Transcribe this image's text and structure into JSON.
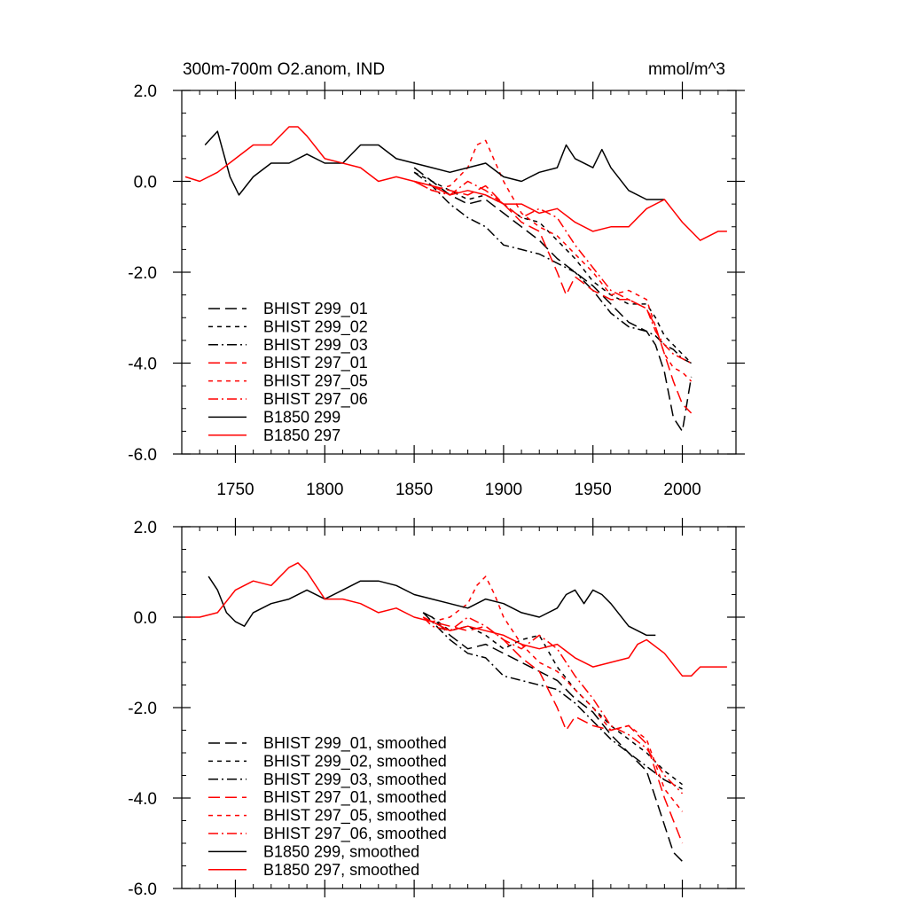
{
  "figure": {
    "title_left": "300m-700m O2.anom, IND",
    "title_right": "mmol/m^3"
  },
  "chart_data": [
    {
      "type": "line",
      "panel": "top",
      "xlim": [
        1720,
        2030
      ],
      "ylim": [
        -6.0,
        2.0
      ],
      "x_ticks": [
        1750,
        1800,
        1850,
        1900,
        1950,
        2000
      ],
      "x_tick_labels": [
        "1750",
        "1800",
        "1850",
        "1900",
        "1950",
        "2000"
      ],
      "y_ticks": [
        2.0,
        0.0,
        -2.0,
        -4.0,
        -6.0
      ],
      "y_tick_labels": [
        "2.0",
        "0.0",
        "-2.0",
        "-4.0",
        "-6.0"
      ],
      "grid": false,
      "legend_position": "bottom-left",
      "series": [
        {
          "name": "BHIST 299_01",
          "color": "#000000",
          "dash": "long-dash",
          "x": [
            1850,
            1860,
            1870,
            1880,
            1890,
            1900,
            1910,
            1920,
            1930,
            1940,
            1950,
            1960,
            1970,
            1980,
            1985,
            1990,
            1995,
            2000,
            2005
          ],
          "y": [
            0.3,
            0.0,
            -0.3,
            -0.5,
            -0.4,
            -0.7,
            -1.0,
            -1.3,
            -1.7,
            -2.0,
            -2.3,
            -2.7,
            -3.1,
            -3.3,
            -3.6,
            -4.2,
            -5.2,
            -5.5,
            -4.3
          ]
        },
        {
          "name": "BHIST 299_02",
          "color": "#000000",
          "dash": "short-dash",
          "x": [
            1850,
            1860,
            1870,
            1880,
            1890,
            1900,
            1910,
            1920,
            1930,
            1940,
            1950,
            1960,
            1970,
            1980,
            1985,
            1990,
            1995,
            2000,
            2005
          ],
          "y": [
            0.2,
            0.0,
            -0.2,
            -0.4,
            -0.3,
            -0.5,
            -0.8,
            -0.9,
            -1.3,
            -1.7,
            -2.2,
            -2.5,
            -2.7,
            -2.7,
            -3.0,
            -3.4,
            -3.6,
            -3.8,
            -4.0
          ]
        },
        {
          "name": "BHIST 299_03",
          "color": "#000000",
          "dash": "dash-dot",
          "x": [
            1850,
            1860,
            1870,
            1880,
            1890,
            1900,
            1910,
            1920,
            1930,
            1940,
            1950,
            1960,
            1970,
            1980,
            1985,
            1990,
            1995,
            2000,
            2005
          ],
          "y": [
            0.2,
            -0.1,
            -0.5,
            -0.8,
            -1.0,
            -1.4,
            -1.5,
            -1.6,
            -1.8,
            -2.0,
            -2.4,
            -2.9,
            -3.2,
            -3.3,
            -3.4,
            -3.6,
            -3.7,
            -3.9,
            -4.0
          ]
        },
        {
          "name": "BHIST 297_01",
          "color": "#ff0000",
          "dash": "long-dash",
          "x": [
            1850,
            1860,
            1870,
            1880,
            1890,
            1900,
            1910,
            1920,
            1930,
            1935,
            1940,
            1950,
            1960,
            1970,
            1980,
            1985,
            1990,
            1995,
            2000,
            2005
          ],
          "y": [
            0.0,
            -0.1,
            -0.2,
            -0.3,
            -0.1,
            -0.5,
            -0.9,
            -1.1,
            -2.0,
            -2.5,
            -2.1,
            -2.4,
            -2.6,
            -2.6,
            -2.8,
            -3.2,
            -3.8,
            -4.4,
            -4.9,
            -5.1
          ]
        },
        {
          "name": "BHIST 297_05",
          "color": "#ff0000",
          "dash": "short-dash",
          "x": [
            1850,
            1860,
            1870,
            1880,
            1885,
            1890,
            1900,
            1910,
            1920,
            1930,
            1940,
            1950,
            1960,
            1970,
            1980,
            1985,
            1990,
            1995,
            2000,
            2005
          ],
          "y": [
            0.0,
            -0.2,
            -0.1,
            0.3,
            0.8,
            0.9,
            0.0,
            -0.7,
            -1.0,
            -1.2,
            -1.6,
            -2.0,
            -2.5,
            -2.4,
            -2.6,
            -3.2,
            -3.8,
            -4.1,
            -4.2,
            -4.4
          ]
        },
        {
          "name": "BHIST 297_06",
          "color": "#ff0000",
          "dash": "dash-dot",
          "x": [
            1850,
            1860,
            1870,
            1880,
            1890,
            1900,
            1910,
            1920,
            1930,
            1940,
            1950,
            1960,
            1970,
            1980,
            1985,
            1990,
            1995,
            2000,
            2005
          ],
          "y": [
            0.0,
            -0.2,
            -0.3,
            0.0,
            -0.2,
            -0.5,
            -0.8,
            -0.6,
            -0.8,
            -1.4,
            -1.9,
            -2.4,
            -2.6,
            -2.8,
            -3.3,
            -3.6,
            -3.8,
            -3.9,
            -4.0
          ]
        },
        {
          "name": "B1850 299",
          "color": "#000000",
          "dash": "solid",
          "x": [
            1733,
            1740,
            1747,
            1752,
            1760,
            1770,
            1780,
            1790,
            1800,
            1810,
            1820,
            1830,
            1840,
            1850,
            1860,
            1870,
            1880,
            1890,
            1900,
            1910,
            1920,
            1930,
            1935,
            1940,
            1950,
            1955,
            1960,
            1970,
            1980,
            1985,
            1990
          ],
          "y": [
            0.8,
            1.1,
            0.1,
            -0.3,
            0.1,
            0.4,
            0.4,
            0.6,
            0.4,
            0.4,
            0.8,
            0.8,
            0.5,
            0.4,
            0.3,
            0.2,
            0.3,
            0.4,
            0.1,
            0.0,
            0.2,
            0.3,
            0.8,
            0.5,
            0.3,
            0.7,
            0.3,
            -0.2,
            -0.4,
            -0.4,
            -0.4
          ]
        },
        {
          "name": "B1850 297",
          "color": "#ff0000",
          "dash": "solid",
          "x": [
            1722,
            1730,
            1740,
            1750,
            1760,
            1770,
            1780,
            1785,
            1790,
            1800,
            1810,
            1820,
            1830,
            1840,
            1850,
            1860,
            1870,
            1880,
            1890,
            1900,
            1910,
            1920,
            1930,
            1940,
            1950,
            1960,
            1970,
            1980,
            1990,
            2000,
            2010,
            2020,
            2025
          ],
          "y": [
            0.1,
            0.0,
            0.2,
            0.5,
            0.8,
            0.8,
            1.2,
            1.2,
            1.0,
            0.5,
            0.4,
            0.3,
            0.0,
            0.1,
            0.0,
            -0.1,
            -0.3,
            -0.2,
            -0.3,
            -0.5,
            -0.5,
            -0.7,
            -0.6,
            -0.9,
            -1.1,
            -1.0,
            -1.0,
            -0.6,
            -0.4,
            -0.9,
            -1.3,
            -1.1,
            -1.1
          ]
        }
      ]
    },
    {
      "type": "line",
      "panel": "bottom",
      "xlim": [
        1720,
        2030
      ],
      "ylim": [
        -6.0,
        2.0
      ],
      "x_ticks": [
        1750,
        1800,
        1850,
        1900,
        1950,
        2000
      ],
      "x_tick_labels": [
        "",
        "",
        "",
        "",
        "",
        ""
      ],
      "y_ticks": [
        2.0,
        0.0,
        -2.0,
        -4.0,
        -6.0
      ],
      "y_tick_labels": [
        "2.0",
        "0.0",
        "-2.0",
        "-4.0",
        "-6.0"
      ],
      "grid": false,
      "legend_position": "bottom-left",
      "series": [
        {
          "name": "BHIST 299_01, smoothed",
          "color": "#000000",
          "dash": "long-dash",
          "x": [
            1855,
            1860,
            1870,
            1880,
            1890,
            1900,
            1910,
            1920,
            1930,
            1940,
            1950,
            1960,
            1970,
            1980,
            1990,
            1995,
            2000
          ],
          "y": [
            0.1,
            0.0,
            -0.4,
            -0.7,
            -0.6,
            -0.8,
            -1.0,
            -1.2,
            -1.4,
            -1.8,
            -2.1,
            -2.6,
            -3.0,
            -3.4,
            -4.6,
            -5.2,
            -5.4
          ]
        },
        {
          "name": "BHIST 299_02, smoothed",
          "color": "#000000",
          "dash": "short-dash",
          "x": [
            1855,
            1860,
            1870,
            1880,
            1890,
            1900,
            1910,
            1920,
            1930,
            1940,
            1950,
            1960,
            1970,
            1980,
            1990,
            2000
          ],
          "y": [
            0.1,
            0.0,
            -0.3,
            -0.2,
            -0.4,
            -0.7,
            -0.5,
            -0.4,
            -1.1,
            -1.6,
            -2.0,
            -2.4,
            -2.7,
            -3.0,
            -3.4,
            -3.7
          ]
        },
        {
          "name": "BHIST 299_03, smoothed",
          "color": "#000000",
          "dash": "dash-dot",
          "x": [
            1855,
            1860,
            1870,
            1880,
            1890,
            1900,
            1910,
            1920,
            1930,
            1940,
            1950,
            1960,
            1970,
            1980,
            1990,
            2000
          ],
          "y": [
            0.1,
            -0.1,
            -0.5,
            -0.8,
            -0.9,
            -1.3,
            -1.4,
            -1.5,
            -1.6,
            -1.9,
            -2.3,
            -2.7,
            -3.0,
            -3.3,
            -3.6,
            -3.8
          ]
        },
        {
          "name": "BHIST 297_01, smoothed",
          "color": "#ff0000",
          "dash": "long-dash",
          "x": [
            1855,
            1860,
            1870,
            1880,
            1890,
            1900,
            1910,
            1920,
            1930,
            1935,
            1940,
            1950,
            1960,
            1970,
            1980,
            1990,
            2000
          ],
          "y": [
            0.0,
            -0.1,
            -0.2,
            -0.3,
            -0.2,
            -0.5,
            -0.9,
            -1.2,
            -2.0,
            -2.5,
            -2.2,
            -2.4,
            -2.5,
            -2.4,
            -2.8,
            -4.0,
            -5.0
          ]
        },
        {
          "name": "BHIST 297_05, smoothed",
          "color": "#ff0000",
          "dash": "short-dash",
          "x": [
            1855,
            1860,
            1870,
            1880,
            1885,
            1890,
            1895,
            1900,
            1910,
            1920,
            1930,
            1940,
            1950,
            1960,
            1970,
            1980,
            1990,
            2000
          ],
          "y": [
            0.0,
            -0.1,
            0.0,
            0.3,
            0.7,
            0.9,
            0.5,
            0.0,
            -0.6,
            -1.0,
            -1.2,
            -1.6,
            -2.0,
            -2.5,
            -2.4,
            -2.7,
            -3.8,
            -4.3
          ]
        },
        {
          "name": "BHIST 297_06, smoothed",
          "color": "#ff0000",
          "dash": "dash-dot",
          "x": [
            1855,
            1860,
            1870,
            1880,
            1890,
            1900,
            1910,
            1920,
            1930,
            1940,
            1950,
            1960,
            1970,
            1980,
            1990,
            2000
          ],
          "y": [
            0.0,
            -0.2,
            -0.3,
            0.0,
            -0.2,
            -0.5,
            -0.7,
            -0.4,
            -0.7,
            -1.3,
            -1.8,
            -2.4,
            -2.6,
            -2.9,
            -3.5,
            -3.9
          ]
        },
        {
          "name": "B1850 299, smoothed",
          "color": "#000000",
          "dash": "solid",
          "x": [
            1735,
            1740,
            1745,
            1750,
            1755,
            1760,
            1770,
            1780,
            1790,
            1800,
            1810,
            1820,
            1830,
            1840,
            1850,
            1860,
            1870,
            1880,
            1890,
            1900,
            1910,
            1920,
            1930,
            1935,
            1940,
            1945,
            1950,
            1955,
            1960,
            1970,
            1980,
            1985
          ],
          "y": [
            0.9,
            0.6,
            0.1,
            -0.1,
            -0.2,
            0.1,
            0.3,
            0.4,
            0.6,
            0.4,
            0.6,
            0.8,
            0.8,
            0.7,
            0.5,
            0.4,
            0.3,
            0.2,
            0.4,
            0.3,
            0.1,
            0.0,
            0.2,
            0.5,
            0.6,
            0.3,
            0.6,
            0.5,
            0.3,
            -0.2,
            -0.4,
            -0.4
          ]
        },
        {
          "name": "B1850 297, smoothed",
          "color": "#ff0000",
          "dash": "solid",
          "x": [
            1722,
            1730,
            1740,
            1750,
            1760,
            1770,
            1780,
            1785,
            1790,
            1800,
            1810,
            1820,
            1830,
            1840,
            1850,
            1860,
            1870,
            1880,
            1890,
            1900,
            1910,
            1920,
            1930,
            1940,
            1950,
            1960,
            1970,
            1975,
            1980,
            1990,
            2000,
            2005,
            2010,
            2015,
            2020,
            2025
          ],
          "y": [
            0.0,
            0.0,
            0.1,
            0.6,
            0.8,
            0.7,
            1.1,
            1.2,
            1.0,
            0.4,
            0.4,
            0.3,
            0.1,
            0.2,
            0.0,
            -0.1,
            -0.3,
            -0.2,
            -0.3,
            -0.4,
            -0.6,
            -0.7,
            -0.6,
            -0.9,
            -1.1,
            -1.0,
            -0.9,
            -0.6,
            -0.5,
            -0.8,
            -1.3,
            -1.3,
            -1.1,
            -1.1,
            -1.1,
            -1.1
          ]
        }
      ]
    }
  ]
}
